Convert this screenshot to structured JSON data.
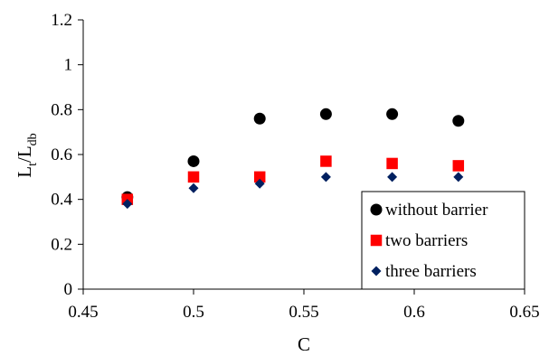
{
  "chart_data": {
    "type": "scatter",
    "xlabel": "C",
    "ylabel_main": "L",
    "ylabel_sub1": "t",
    "ylabel_slash": "/L",
    "ylabel_sub2": "db",
    "xlim": [
      0.45,
      0.65
    ],
    "ylim": [
      0,
      1.2
    ],
    "x_ticks": [
      "0.45",
      "0.5",
      "0.55",
      "0.6",
      "0.65"
    ],
    "y_ticks": [
      "0",
      "0.2",
      "0.4",
      "0.6",
      "0.8",
      "1",
      "1.2"
    ],
    "grid": false,
    "legend_position": "bottom-right",
    "series": [
      {
        "name": "without barrier",
        "marker": "circle",
        "color": "#000000",
        "x": [
          0.47,
          0.5,
          0.53,
          0.56,
          0.59,
          0.62
        ],
        "y": [
          0.41,
          0.57,
          0.76,
          0.78,
          0.78,
          0.75
        ]
      },
      {
        "name": "two barriers",
        "marker": "square",
        "color": "#ff0000",
        "x": [
          0.47,
          0.5,
          0.53,
          0.56,
          0.59,
          0.62
        ],
        "y": [
          0.4,
          0.5,
          0.5,
          0.57,
          0.56,
          0.55
        ]
      },
      {
        "name": "three barriers",
        "marker": "diamond",
        "color": "#002060",
        "x": [
          0.47,
          0.5,
          0.53,
          0.56,
          0.59,
          0.62
        ],
        "y": [
          0.38,
          0.45,
          0.47,
          0.5,
          0.5,
          0.5
        ]
      }
    ]
  }
}
